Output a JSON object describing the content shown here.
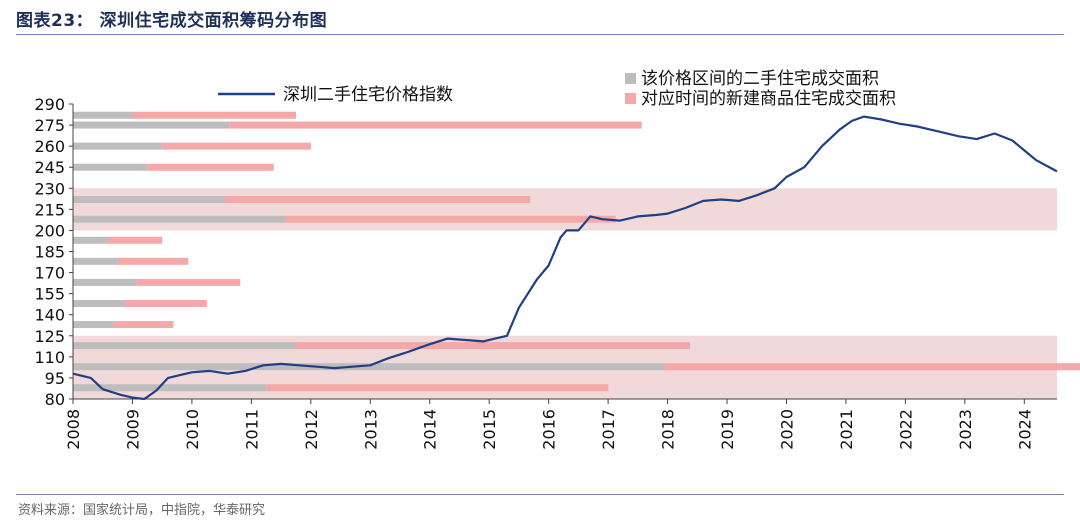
{
  "figure_title": "图表23：  深圳住宅成交面积筹码分布图",
  "source": "资料来源：国家统计局，中指院，华泰研究",
  "colors": {
    "line": "#1f3f86",
    "bar_gray": "#bdbdbd",
    "bar_pink": "#f4a8a8",
    "band": "#f2d9d9",
    "title": "#1f2f5a"
  },
  "chart_data": {
    "type": "line",
    "title": "",
    "xlabel": "",
    "ylabel": "",
    "ylim": [
      80,
      290
    ],
    "xlim": [
      2008,
      2024.55
    ],
    "yticks": [
      80,
      95,
      110,
      125,
      140,
      155,
      170,
      185,
      200,
      215,
      230,
      245,
      260,
      275,
      290
    ],
    "xticks": [
      "2008",
      "2009",
      "2010",
      "2011",
      "2012",
      "2013",
      "2014",
      "2015",
      "2016",
      "2017",
      "2018",
      "2019",
      "2020",
      "2021",
      "2022",
      "2023",
      "2024"
    ],
    "legend": [
      {
        "name": "深圳二手住宅价格指数",
        "kind": "line"
      },
      {
        "name": "该价格区间的二手住宅成交面积",
        "kind": "square",
        "color": "#bdbdbd"
      },
      {
        "name": "对应时间的新建商品住宅成交面积",
        "kind": "square",
        "color": "#f4a8a8"
      }
    ],
    "bands": [
      [
        80,
        125
      ],
      [
        200,
        230
      ]
    ],
    "series": [
      {
        "name": "深圳二手住宅价格指数",
        "points": [
          [
            2008.0,
            98
          ],
          [
            2008.3,
            95
          ],
          [
            2008.5,
            87
          ],
          [
            2008.8,
            83
          ],
          [
            2009.0,
            81
          ],
          [
            2009.2,
            80
          ],
          [
            2009.4,
            86
          ],
          [
            2009.6,
            95
          ],
          [
            2009.8,
            97
          ],
          [
            2010.0,
            99
          ],
          [
            2010.3,
            100
          ],
          [
            2010.6,
            98
          ],
          [
            2010.9,
            100
          ],
          [
            2011.2,
            104
          ],
          [
            2011.5,
            105
          ],
          [
            2011.8,
            104
          ],
          [
            2012.1,
            103
          ],
          [
            2012.4,
            102
          ],
          [
            2012.7,
            103
          ],
          [
            2013.0,
            104
          ],
          [
            2013.3,
            109
          ],
          [
            2013.6,
            113
          ],
          [
            2014.0,
            119
          ],
          [
            2014.3,
            123
          ],
          [
            2014.6,
            122
          ],
          [
            2014.9,
            121
          ],
          [
            2015.1,
            123
          ],
          [
            2015.3,
            125
          ],
          [
            2015.5,
            145
          ],
          [
            2015.8,
            165
          ],
          [
            2016.0,
            175
          ],
          [
            2016.2,
            195
          ],
          [
            2016.3,
            200
          ],
          [
            2016.5,
            200
          ],
          [
            2016.7,
            210
          ],
          [
            2016.9,
            208
          ],
          [
            2017.2,
            207
          ],
          [
            2017.5,
            210
          ],
          [
            2017.8,
            211
          ],
          [
            2018.0,
            212
          ],
          [
            2018.3,
            216
          ],
          [
            2018.6,
            221
          ],
          [
            2018.9,
            222
          ],
          [
            2019.2,
            221
          ],
          [
            2019.5,
            225
          ],
          [
            2019.8,
            230
          ],
          [
            2020.0,
            238
          ],
          [
            2020.3,
            245
          ],
          [
            2020.6,
            260
          ],
          [
            2020.9,
            272
          ],
          [
            2021.1,
            278
          ],
          [
            2021.3,
            281
          ],
          [
            2021.6,
            279
          ],
          [
            2021.9,
            276
          ],
          [
            2022.2,
            274
          ],
          [
            2022.4,
            272
          ],
          [
            2022.6,
            270
          ],
          [
            2022.9,
            267
          ],
          [
            2023.2,
            265
          ],
          [
            2023.5,
            269
          ],
          [
            2023.8,
            264
          ],
          [
            2024.0,
            257
          ],
          [
            2024.2,
            250
          ],
          [
            2024.55,
            242
          ]
        ]
      }
    ],
    "bars": [
      {
        "y": 282,
        "secondhand": 16,
        "newhome": 44
      },
      {
        "y": 275,
        "secondhand": 42,
        "newhome": 111
      },
      {
        "y": 260,
        "secondhand": 24,
        "newhome": 40
      },
      {
        "y": 245,
        "secondhand": 20,
        "newhome": 34
      },
      {
        "y": 222,
        "secondhand": 41,
        "newhome": 82
      },
      {
        "y": 208,
        "secondhand": 57,
        "newhome": 89
      },
      {
        "y": 193,
        "secondhand": 9,
        "newhome": 15
      },
      {
        "y": 178,
        "secondhand": 12,
        "newhome": 19
      },
      {
        "y": 163,
        "secondhand": 17,
        "newhome": 28
      },
      {
        "y": 148,
        "secondhand": 14,
        "newhome": 22
      },
      {
        "y": 133,
        "secondhand": 11,
        "newhome": 16
      },
      {
        "y": 118,
        "secondhand": 60,
        "newhome": 106
      },
      {
        "y": 103,
        "secondhand": 159,
        "newhome": 230
      },
      {
        "y": 88,
        "secondhand": 52,
        "newhome": 92
      }
    ],
    "bars_scale_max": 230
  }
}
